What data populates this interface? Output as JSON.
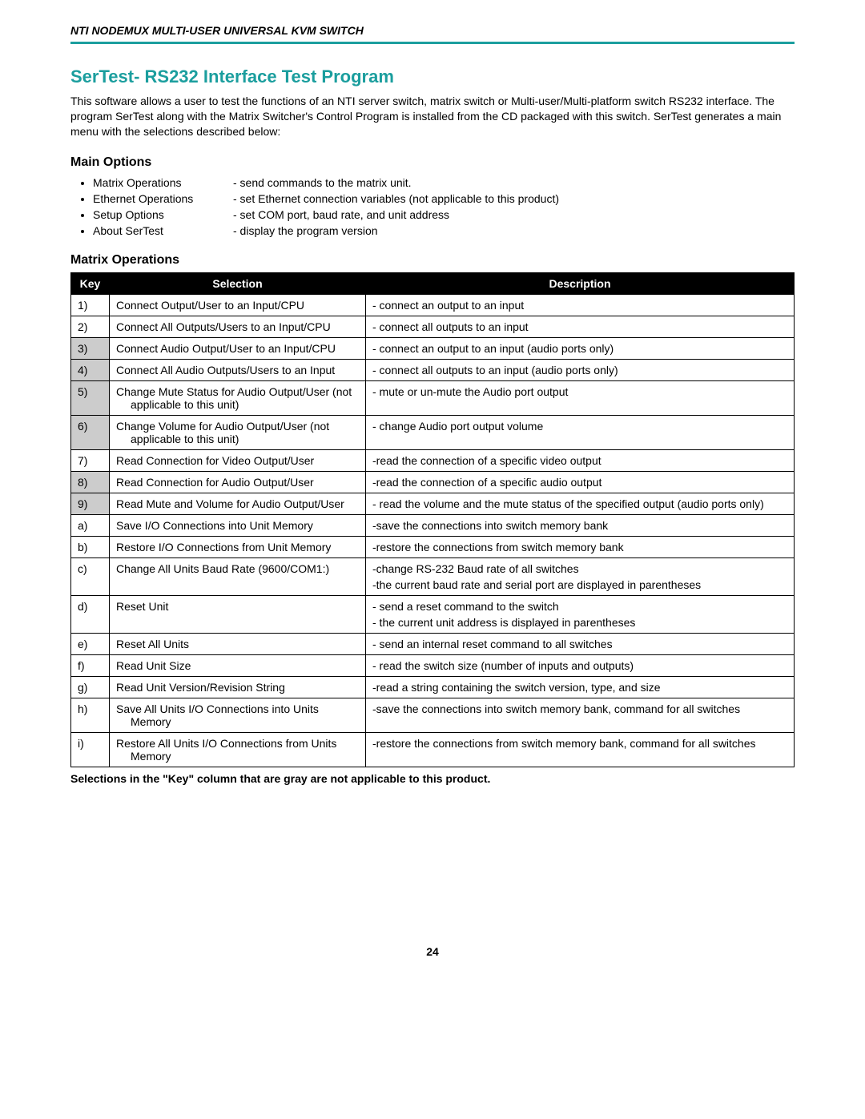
{
  "header": {
    "doc_title": "NTI NODEMUX MULTI-USER UNIVERSAL KVM SWITCH"
  },
  "section": {
    "title": "SerTest- RS232 Interface Test Program",
    "intro": "This software allows a user to test the functions of an NTI server switch, matrix switch or Multi-user/Multi-platform switch RS232 interface.    The program SerTest along with the Matrix Switcher's Control Program is installed from the CD packaged with this switch.  SerTest generates a main menu with the selections described below:"
  },
  "main_options": {
    "heading": "Main Options",
    "items": [
      {
        "label": "Matrix Operations",
        "desc": "- send commands to the matrix unit."
      },
      {
        "label": "Ethernet Operations",
        "desc": "- set Ethernet connection variables (not applicable to this product)"
      },
      {
        "label": "Setup Options",
        "desc": "- set COM port, baud rate, and unit address"
      },
      {
        "label": "About SerTest",
        "desc": "- display the program version"
      }
    ]
  },
  "matrix_ops": {
    "heading": "Matrix Operations",
    "columns": {
      "key": "Key",
      "selection": "Selection",
      "description": "Description"
    },
    "rows": [
      {
        "key": "1)",
        "gray": false,
        "selection": "Connect Output/User to an Input/CPU",
        "description": [
          "- connect an output to an input"
        ]
      },
      {
        "key": "2)",
        "gray": false,
        "selection": "Connect All Outputs/Users to an Input/CPU",
        "description": [
          "- connect all outputs to an input"
        ]
      },
      {
        "key": "3)",
        "gray": true,
        "selection": "Connect Audio Output/User to an Input/CPU",
        "description": [
          "- connect an output to an input (audio ports only)"
        ]
      },
      {
        "key": "4)",
        "gray": true,
        "selection": "Connect All Audio Outputs/Users to an Input",
        "description": [
          "- connect all outputs to an input (audio ports only)"
        ]
      },
      {
        "key": "5)",
        "gray": true,
        "selection": "Change Mute Status for Audio Output/User (not applicable to this unit)",
        "sel_indent": true,
        "description": [
          "- mute or un-mute the Audio port output"
        ]
      },
      {
        "key": "6)",
        "gray": true,
        "selection": "Change Volume for Audio Output/User  (not applicable to this unit)",
        "sel_indent": true,
        "description": [
          "- change Audio port output volume"
        ]
      },
      {
        "key": "7)",
        "gray": false,
        "selection": "Read Connection for Video Output/User",
        "description": [
          "-read the connection of a specific video output"
        ]
      },
      {
        "key": "8)",
        "gray": true,
        "selection": "Read Connection for Audio Output/User",
        "description": [
          "-read the connection of a specific audio output"
        ]
      },
      {
        "key": "9)",
        "gray": true,
        "selection": "Read Mute and Volume for Audio Output/User",
        "description": [
          "- read the volume and the mute status of the specified output (audio ports only)"
        ]
      },
      {
        "key": "a)",
        "gray": false,
        "selection": "Save I/O Connections into Unit Memory",
        "description": [
          "-save the connections into switch memory bank"
        ]
      },
      {
        "key": "b)",
        "gray": false,
        "selection": "Restore I/O Connections from Unit Memory",
        "description": [
          "-restore the connections from switch memory bank"
        ]
      },
      {
        "key": "c)",
        "gray": false,
        "selection": "Change All Units Baud Rate (9600/COM1:)",
        "description": [
          "-change RS-232 Baud rate of all switches",
          "-the current baud rate and serial port are displayed in parentheses"
        ]
      },
      {
        "key": "d)",
        "gray": false,
        "selection": "Reset Unit",
        "description": [
          "- send a  reset command to the switch",
          "- the current unit address is displayed in parentheses"
        ]
      },
      {
        "key": "e)",
        "gray": false,
        "selection": "Reset All Units",
        "description": [
          "- send an internal reset command to all switches"
        ]
      },
      {
        "key": "f)",
        "gray": false,
        "selection": "Read Unit Size",
        "description": [
          "- read the switch size (number of inputs and outputs)"
        ]
      },
      {
        "key": "g)",
        "gray": false,
        "selection": "Read Unit Version/Revision String",
        "description": [
          "-read a string containing the switch version, type, and size"
        ]
      },
      {
        "key": "h)",
        "gray": false,
        "selection": "Save All Units I/O Connections into Units Memory",
        "sel_indent": true,
        "description": [
          "-save the connections into switch memory bank, command for all switches"
        ]
      },
      {
        "key": "i)",
        "gray": false,
        "selection": "Restore All Units I/O Connections from Units Memory",
        "sel_indent": true,
        "description": [
          "-restore the connections from switch memory bank, command for all switches"
        ]
      }
    ],
    "note": "Selections in the \"Key\" column that are gray are not applicable to this product."
  },
  "footer": {
    "page_number": "24"
  },
  "style": {
    "teal": "#1b9e9e",
    "gray_cell": "#cccccc",
    "black": "#000000",
    "white": "#ffffff",
    "body_font_size_pt": 11,
    "title_font_size_pt": 17,
    "sub_heading_font_size_pt": 12
  }
}
